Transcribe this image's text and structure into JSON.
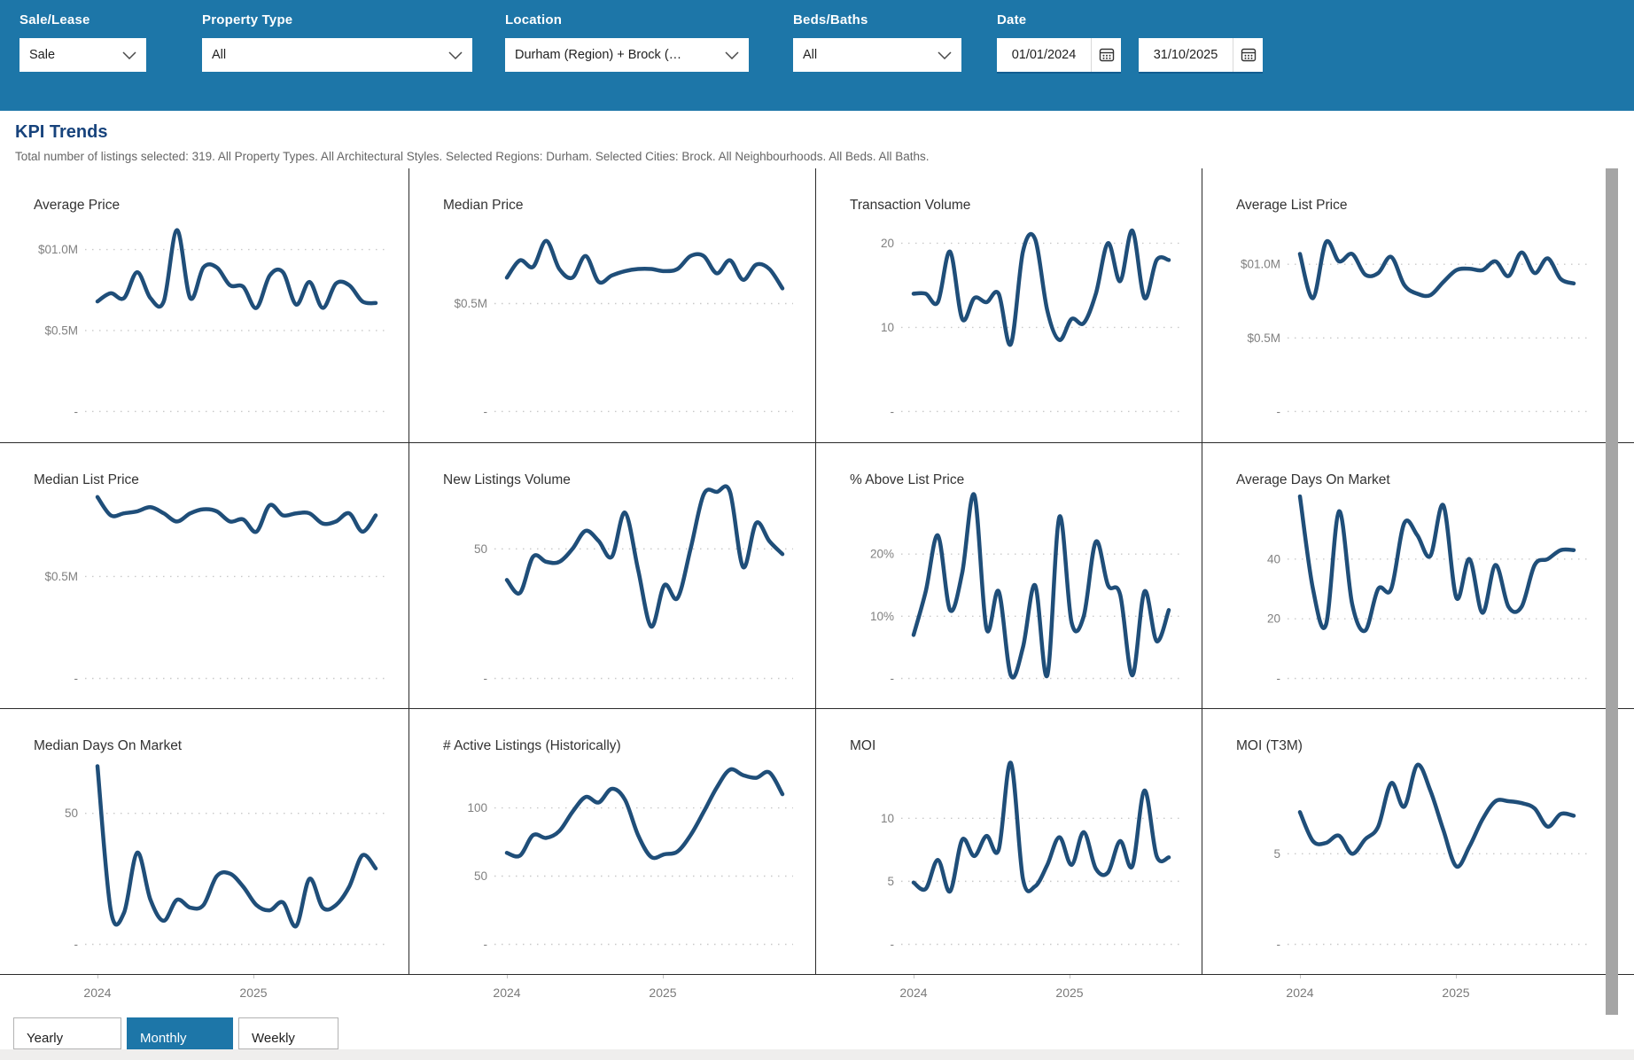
{
  "header": {
    "background": "#1d76a8",
    "filters": {
      "sale_lease": {
        "label": "Sale/Lease",
        "value": "Sale"
      },
      "property_type": {
        "label": "Property Type",
        "value": "All"
      },
      "location": {
        "label": "Location",
        "value": "Durham (Region) + Brock (…"
      },
      "beds_baths": {
        "label": "Beds/Baths",
        "value": "All"
      },
      "date": {
        "label": "Date",
        "start": "01/01/2024",
        "end": "31/10/2025"
      }
    }
  },
  "section": {
    "title": "KPI Trends",
    "subtitle": "Total number of listings selected: 319. All Property Types. All Architectural Styles. Selected Regions: Durham. Selected Cities: Brock. All Neighbourhoods. All Beds. All Baths."
  },
  "granularity": {
    "options": [
      "Yearly",
      "Monthly",
      "Weekly"
    ],
    "selected": "Monthly"
  },
  "colors": {
    "header_blue": "#1d76a8",
    "line_navy": "#1f4e79",
    "section_title": "#17437c",
    "tick_gray": "#808080",
    "grid_dot": "#c9c9c9"
  },
  "x_axis_labels": [
    "2024",
    "2025"
  ],
  "chart_data": [
    {
      "id": "average-price",
      "type": "line",
      "title": "Average Price",
      "ylim": [
        0,
        1.2
      ],
      "y_ticks": [
        {
          "label": "$01.0M",
          "value": 1.0
        },
        {
          "label": "$0.5M",
          "value": 0.5
        },
        {
          "label": "-",
          "value": 0
        }
      ],
      "x_labels": [
        "2024",
        "2025"
      ],
      "values": [
        0.68,
        0.73,
        0.7,
        0.86,
        0.7,
        0.68,
        1.12,
        0.7,
        0.89,
        0.89,
        0.78,
        0.77,
        0.64,
        0.84,
        0.86,
        0.66,
        0.8,
        0.64,
        0.79,
        0.78,
        0.68,
        0.67
      ]
    },
    {
      "id": "median-price",
      "type": "line",
      "title": "Median Price",
      "ylim": [
        0,
        0.9
      ],
      "y_ticks": [
        {
          "label": "$0.5M",
          "value": 0.5
        },
        {
          "label": "-",
          "value": 0
        }
      ],
      "x_labels": [
        "2024",
        "2025"
      ],
      "values": [
        0.62,
        0.7,
        0.67,
        0.79,
        0.66,
        0.62,
        0.72,
        0.6,
        0.63,
        0.65,
        0.66,
        0.66,
        0.65,
        0.66,
        0.72,
        0.72,
        0.64,
        0.7,
        0.61,
        0.68,
        0.66,
        0.57
      ]
    },
    {
      "id": "transaction-volume",
      "type": "line",
      "title": "Transaction Volume",
      "ylim": [
        0,
        23.1
      ],
      "y_ticks": [
        {
          "label": "20",
          "value": 20
        },
        {
          "label": "10",
          "value": 10
        },
        {
          "label": "-",
          "value": 0
        }
      ],
      "x_labels": [
        "2024",
        "2025"
      ],
      "values": [
        14,
        14,
        13,
        19,
        11,
        13.5,
        13,
        14,
        8,
        19,
        20.5,
        12,
        8.5,
        11,
        10.5,
        14,
        20,
        15.5,
        21.5,
        13.5,
        18,
        18
      ]
    },
    {
      "id": "average-list-price",
      "type": "line",
      "title": "Average List Price",
      "ylim": [
        0,
        1.32
      ],
      "y_ticks": [
        {
          "label": "$01.0M",
          "value": 1.0
        },
        {
          "label": "$0.5M",
          "value": 0.5
        },
        {
          "label": "-",
          "value": 0
        }
      ],
      "x_labels": [
        "2024",
        "2025"
      ],
      "values": [
        1.07,
        0.77,
        1.15,
        1.02,
        1.07,
        0.93,
        0.94,
        1.05,
        0.86,
        0.8,
        0.79,
        0.88,
        0.96,
        0.97,
        0.96,
        1.02,
        0.92,
        1.08,
        0.94,
        1.04,
        0.9,
        0.87
      ]
    },
    {
      "id": "median-list-price",
      "type": "line",
      "title": "Median List Price",
      "ylim": [
        0,
        0.915
      ],
      "y_ticks": [
        {
          "label": "$0.5M",
          "value": 0.5
        },
        {
          "label": "-",
          "value": 0
        }
      ],
      "x_labels": [
        "2024",
        "2025"
      ],
      "values": [
        0.89,
        0.8,
        0.81,
        0.82,
        0.84,
        0.81,
        0.77,
        0.81,
        0.83,
        0.82,
        0.77,
        0.78,
        0.72,
        0.85,
        0.8,
        0.81,
        0.81,
        0.76,
        0.77,
        0.81,
        0.72,
        0.8
      ]
    },
    {
      "id": "new-listings-volume",
      "type": "line",
      "title": "New Listings Volume",
      "ylim": [
        0,
        72
      ],
      "y_ticks": [
        {
          "label": "50",
          "value": 50
        },
        {
          "label": "-",
          "value": 0
        }
      ],
      "x_labels": [
        "2024",
        "2025"
      ],
      "values": [
        38,
        33,
        47,
        45,
        45,
        50,
        57,
        53,
        47,
        64,
        42,
        20,
        36,
        31,
        50,
        71,
        72,
        72,
        43,
        60,
        53,
        48
      ]
    },
    {
      "id": "pct-above-list-price",
      "type": "line",
      "title": "% Above List Price",
      "ylim": [
        0,
        30
      ],
      "y_ticks": [
        {
          "label": "20%",
          "value": 20
        },
        {
          "label": "10%",
          "value": 10
        },
        {
          "label": "-",
          "value": 0
        }
      ],
      "x_labels": [
        "2024",
        "2025"
      ],
      "values": [
        7,
        14,
        23,
        11,
        17,
        29.5,
        8,
        14,
        0.5,
        5,
        15,
        0.5,
        26,
        9,
        10,
        22,
        15,
        13.5,
        0.5,
        14,
        6,
        11
      ]
    },
    {
      "id": "average-days-on-market",
      "type": "line",
      "title": "Average Days On Market",
      "ylim": [
        0,
        62.5
      ],
      "y_ticks": [
        {
          "label": "40",
          "value": 40
        },
        {
          "label": "20",
          "value": 20
        },
        {
          "label": "-",
          "value": 0
        }
      ],
      "x_labels": [
        "2024",
        "2025"
      ],
      "values": [
        61,
        30,
        18,
        56,
        25,
        16,
        30,
        30,
        52,
        48,
        41,
        58,
        27,
        40,
        22,
        38,
        24,
        24,
        38,
        40,
        43,
        43
      ]
    },
    {
      "id": "median-days-on-market",
      "type": "line",
      "title": "Median Days On Market",
      "ylim": [
        0,
        71.2
      ],
      "y_ticks": [
        {
          "label": "50",
          "value": 50
        },
        {
          "label": "-",
          "value": 0
        }
      ],
      "x_labels": [
        "2024",
        "2025"
      ],
      "values": [
        68,
        13,
        12,
        35,
        17,
        9,
        17,
        14,
        15,
        26,
        27,
        22,
        15,
        13,
        16,
        7,
        25,
        14,
        15,
        22,
        34,
        29
      ]
    },
    {
      "id": "active-listings-historically",
      "type": "line",
      "title": "# Active Listings (Historically)",
      "ylim": [
        0,
        136.7
      ],
      "y_ticks": [
        {
          "label": "100",
          "value": 100
        },
        {
          "label": "50",
          "value": 50
        },
        {
          "label": "-",
          "value": 0
        }
      ],
      "x_labels": [
        "2024",
        "2025"
      ],
      "values": [
        67,
        65,
        80,
        78,
        83,
        97,
        108,
        104,
        114,
        106,
        80,
        64,
        66,
        68,
        80,
        97,
        115,
        128,
        124,
        122,
        126,
        110
      ]
    },
    {
      "id": "moi",
      "type": "line",
      "title": "MOI",
      "ylim": [
        0,
        14.8
      ],
      "y_ticks": [
        {
          "label": "10",
          "value": 10
        },
        {
          "label": "5",
          "value": 5
        },
        {
          "label": "-",
          "value": 0
        }
      ],
      "x_labels": [
        "2024",
        "2025"
      ],
      "values": [
        4.9,
        4.4,
        6.7,
        4.2,
        8.3,
        7.0,
        8.6,
        7.5,
        14.4,
        5.2,
        4.6,
        6.3,
        8.5,
        6.3,
        8.9,
        6.0,
        5.7,
        8.2,
        6.2,
        12.2,
        7.0,
        6.9
      ]
    },
    {
      "id": "moi-t3m",
      "type": "line",
      "title": "MOI (T3M)",
      "ylim": [
        0,
        10.3
      ],
      "y_ticks": [
        {
          "label": "5",
          "value": 5
        },
        {
          "label": "-",
          "value": 0
        }
      ],
      "x_labels": [
        "2024",
        "2025"
      ],
      "values": [
        7.3,
        5.7,
        5.6,
        6.0,
        5.0,
        5.8,
        6.5,
        8.9,
        7.6,
        9.9,
        8.5,
        6.3,
        4.3,
        5.4,
        6.9,
        7.9,
        7.9,
        7.8,
        7.5,
        6.5,
        7.2,
        7.1
      ]
    }
  ]
}
